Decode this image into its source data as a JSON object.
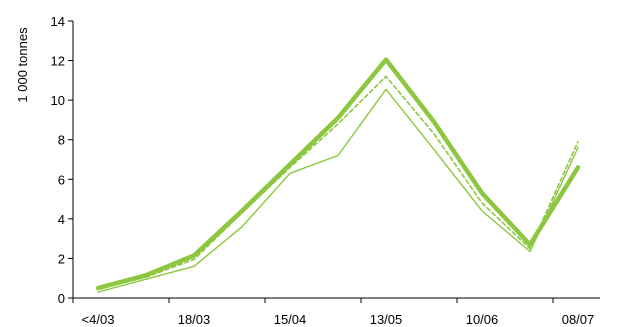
{
  "chart_data": {
    "type": "line",
    "ylabel": "1 000  tonnes",
    "xlabel": "",
    "ylim": [
      0,
      14
    ],
    "yticks": [
      0,
      2,
      4,
      6,
      8,
      10,
      12,
      14
    ],
    "x_tick_labels": [
      "<4/03",
      "18/03",
      "15/04",
      "13/05",
      "10/06",
      "08/07"
    ],
    "grid": false,
    "series": [
      {
        "values": [
          0.5,
          1.15,
          2.15,
          4.4,
          6.75,
          9.1,
          12.05,
          8.9,
          5.3,
          2.7,
          6.6
        ],
        "color": "#8DC63F",
        "style": "thick"
      },
      {
        "values": [
          0.45,
          1.05,
          1.95,
          4.3,
          6.6,
          8.8,
          11.2,
          8.3,
          4.8,
          2.5,
          7.9
        ],
        "color": "#8DC63F",
        "style": "dashed"
      },
      {
        "values": [
          0.3,
          0.95,
          1.6,
          3.6,
          6.3,
          7.2,
          10.55,
          7.5,
          4.4,
          2.35,
          7.6
        ],
        "color": "#8DC63F",
        "style": "thin"
      }
    ]
  }
}
